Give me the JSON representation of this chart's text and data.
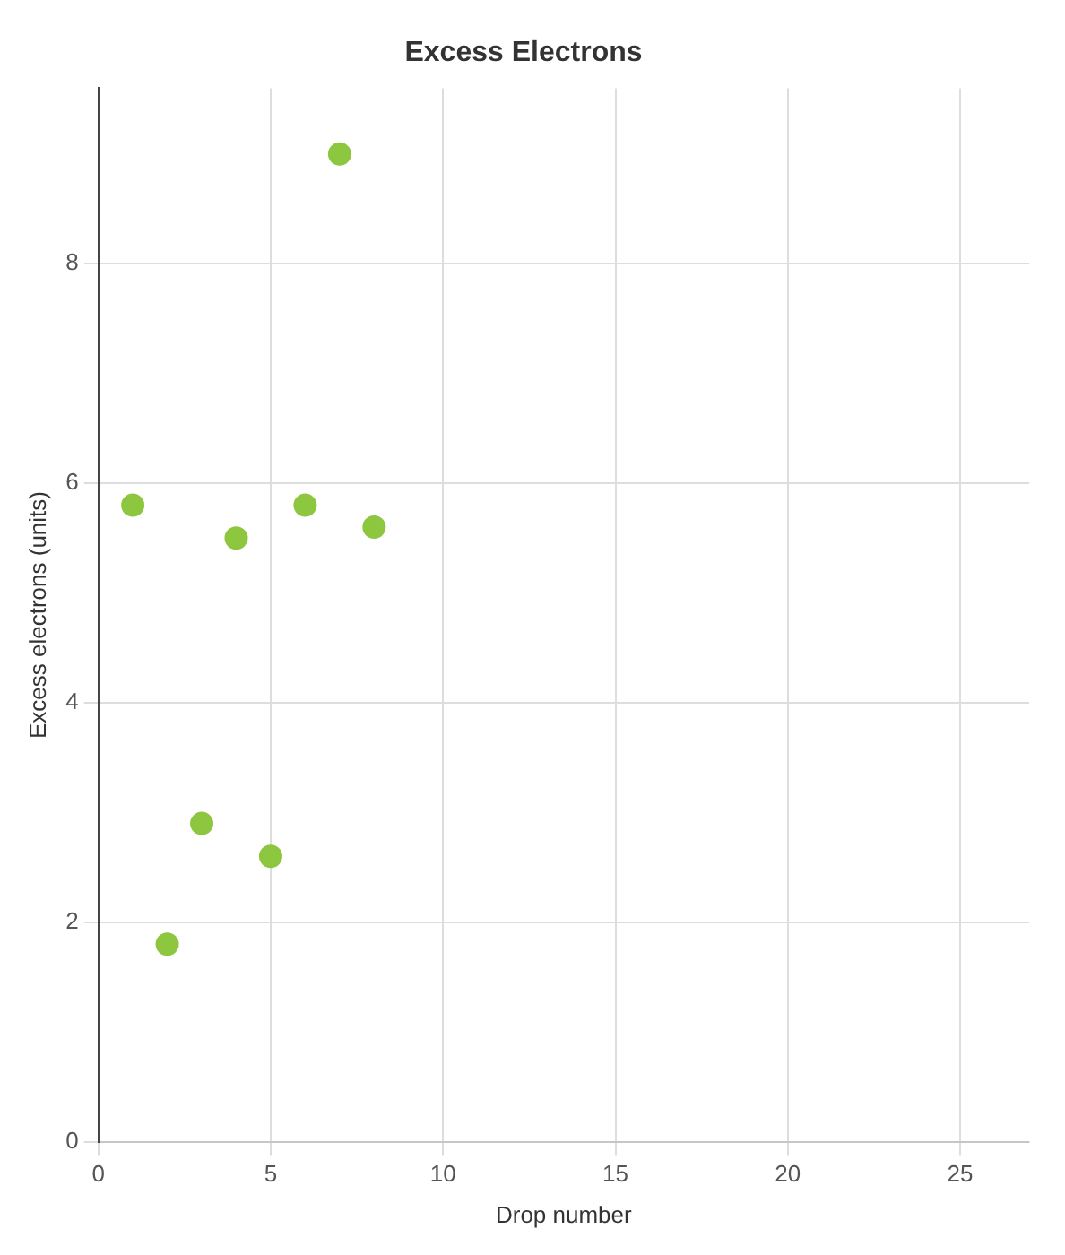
{
  "chart_data": {
    "type": "scatter",
    "title": "Excess Electrons",
    "xlabel": "Drop number",
    "ylabel": "Excess electrons (units)",
    "x": [
      1,
      2,
      3,
      4,
      5,
      6,
      7,
      8
    ],
    "series": [
      {
        "color": "#8dc63f",
        "values": [
          5.8,
          1.8,
          2.9,
          5.5,
          2.6,
          5.8,
          9,
          5.6
        ]
      }
    ],
    "xlim": [
      0,
      27
    ],
    "xticks": [
      0,
      5,
      10,
      15,
      20,
      25
    ],
    "ylim": [
      0,
      9.6
    ],
    "yticks": [
      0,
      2,
      4,
      6,
      8
    ],
    "grid": true,
    "legend": false,
    "marker": "circle"
  }
}
